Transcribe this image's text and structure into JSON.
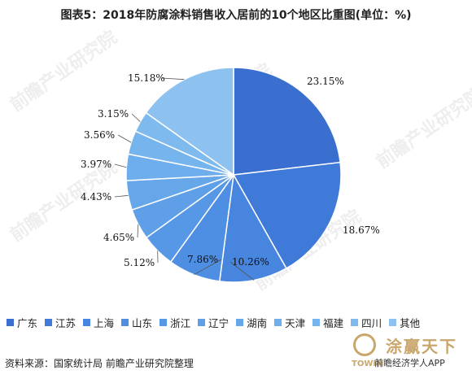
{
  "title": "图表5：2018年防腐涂料销售收入居前的10个地区比重图(单位：%)",
  "chart_data": {
    "type": "pie",
    "title": "图表5：2018年防腐涂料销售收入居前的10个地区比重图(单位：%)",
    "categories": [
      "广东",
      "江苏",
      "上海",
      "山东",
      "浙江",
      "辽宁",
      "湖南",
      "天津",
      "福建",
      "四川",
      "其他"
    ],
    "values": [
      23.15,
      18.67,
      10.26,
      7.86,
      5.12,
      4.65,
      4.43,
      3.97,
      3.56,
      3.15,
      15.18
    ],
    "labels": [
      "23.15%",
      "18.67%",
      "10.26%",
      "7.86%",
      "5.12%",
      "4.65%",
      "4.43%",
      "3.97%",
      "3.56%",
      "3.15%",
      "15.18%"
    ],
    "colors": [
      "#3a6fd0",
      "#3f7ad8",
      "#4785df",
      "#4e8ee3",
      "#5697e6",
      "#5e9fe8",
      "#66a7ea",
      "#6eaeec",
      "#76b4ed",
      "#7ebaee",
      "#8dc2f0"
    ],
    "legend_position": "bottom"
  },
  "source": "资料来源：国家统计局 前瞻产业研究院整理",
  "watermark": "前瞻产业研究院",
  "brand": {
    "cn": "涂赢天下",
    "sub": "前瞻经济学人APP",
    "en": "TOWIN"
  }
}
